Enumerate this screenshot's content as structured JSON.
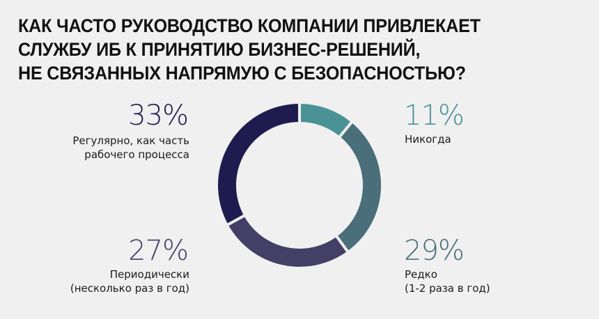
{
  "title": {
    "lines": [
      "КАК ЧАСТО РУКОВОДСТВО КОМПАНИИ ПРИВЛЕКАЕТ",
      "СЛУЖБУ ИБ К ПРИНЯТИЮ БИЗНЕС-РЕШЕНИЙ,",
      "НЕ СВЯЗАННЫХ НАПРЯМУЮ С БЕЗОПАСНОСТЬЮ?"
    ]
  },
  "segments": [
    {
      "pct": "11%",
      "label1": "Никогда",
      "label2": "",
      "color": "#4a9296"
    },
    {
      "pct": "29%",
      "label1": "Редко",
      "label2": "(1-2 раза в год)",
      "color": "#4a6e7a"
    },
    {
      "pct": "27%",
      "label1": "Периодически",
      "label2": "(несколько раз в год)",
      "color": "#433f66"
    },
    {
      "pct": "33%",
      "label1": "Регулярно, как часть",
      "label2": "рабочего процесса",
      "color": "#1e1c4f"
    }
  ],
  "chart_data": {
    "type": "pie",
    "subtype": "donut",
    "title": "КАК ЧАСТО РУКОВОДСТВО КОМПАНИИ ПРИВЛЕКАЕТ СЛУЖБУ ИБ К ПРИНЯТИЮ БИЗНЕС-РЕШЕНИЙ, НЕ СВЯЗАННЫХ НАПРЯМУЮ С БЕЗОПАСНОСТЬЮ?",
    "categories": [
      "Никогда",
      "Редко (1-2 раза в год)",
      "Периодически (несколько раз в год)",
      "Регулярно, как часть рабочего процесса"
    ],
    "values": [
      11,
      29,
      27,
      33
    ],
    "colors": [
      "#4a9296",
      "#4a6e7a",
      "#433f66",
      "#1e1c4f"
    ],
    "unit": "%",
    "start_angle": "top, clockwise"
  }
}
